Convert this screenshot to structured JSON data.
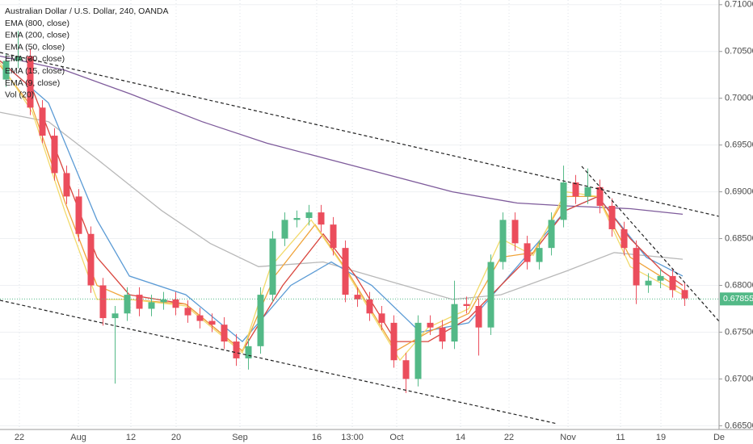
{
  "chart_data": {
    "type": "candlestick",
    "title": "Australian Dollar / U.S. Dollar, 240, OANDA",
    "ylim": [
      0.6646,
      0.7105
    ],
    "yticks": [
      {
        "value": 0.71,
        "label": "0.71000"
      },
      {
        "value": 0.705,
        "label": "0.70500"
      },
      {
        "value": 0.7,
        "label": "0.70000"
      },
      {
        "value": 0.695,
        "label": "0.69500"
      },
      {
        "value": 0.69,
        "label": "0.69000"
      },
      {
        "value": 0.685,
        "label": "0.68500"
      },
      {
        "value": 0.68,
        "label": "0.68000"
      },
      {
        "value": 0.675,
        "label": "0.67500"
      },
      {
        "value": 0.67,
        "label": "0.67000"
      },
      {
        "value": 0.665,
        "label": "0.66500"
      }
    ],
    "xlim": [
      0,
      59.33
    ],
    "xticks": [
      {
        "value": 1.6,
        "label": "22"
      },
      {
        "value": 6.47,
        "label": "Aug"
      },
      {
        "value": 10.8,
        "label": "12"
      },
      {
        "value": 14.53,
        "label": "20"
      },
      {
        "value": 19.8,
        "label": "Sep"
      },
      {
        "value": 26.13,
        "label": "16"
      },
      {
        "value": 29.07,
        "label": "13:00"
      },
      {
        "value": 32.73,
        "label": "Oct"
      },
      {
        "value": 38,
        "label": "14"
      },
      {
        "value": 42,
        "label": "22"
      },
      {
        "value": 46.87,
        "label": "Nov"
      },
      {
        "value": 51.2,
        "label": "11"
      },
      {
        "value": 54.53,
        "label": "19"
      },
      {
        "value": 59.33,
        "label": "De"
      }
    ],
    "grid": true,
    "up_color": "#53b987",
    "down_color": "#eb4d5c",
    "last_price": 0.67855,
    "candles": {
      "open": [
        0.702,
        0.704,
        0.7045,
        0.699,
        0.696,
        0.692,
        0.6895,
        0.6855,
        0.68,
        0.6765,
        0.677,
        0.679,
        0.6775,
        0.6782,
        0.6785,
        0.6776,
        0.6768,
        0.6762,
        0.6758,
        0.674,
        0.6722,
        0.6735,
        0.679,
        0.685,
        0.687,
        0.6872,
        0.6878,
        0.6865,
        0.684,
        0.679,
        0.6785,
        0.677,
        0.676,
        0.672,
        0.67,
        0.676,
        0.6755,
        0.674,
        0.678,
        0.6778,
        0.6755,
        0.6825,
        0.687,
        0.6845,
        0.6825,
        0.684,
        0.687,
        0.691,
        0.6895,
        0.6905,
        0.6885,
        0.686,
        0.684,
        0.68,
        0.6805,
        0.681,
        0.6795
      ],
      "high": [
        0.7048,
        0.7072,
        0.7053,
        0.6998,
        0.6968,
        0.6928,
        0.6903,
        0.6863,
        0.6808,
        0.6778,
        0.6798,
        0.6798,
        0.679,
        0.6793,
        0.6793,
        0.6784,
        0.6776,
        0.677,
        0.6766,
        0.6748,
        0.6743,
        0.6798,
        0.6858,
        0.6878,
        0.688,
        0.6886,
        0.6886,
        0.6873,
        0.6848,
        0.6798,
        0.6793,
        0.6778,
        0.6768,
        0.6728,
        0.6768,
        0.6768,
        0.6763,
        0.6805,
        0.6788,
        0.6786,
        0.6833,
        0.6878,
        0.6878,
        0.6853,
        0.6848,
        0.6878,
        0.6928,
        0.6918,
        0.6925,
        0.6913,
        0.6893,
        0.6868,
        0.6848,
        0.6813,
        0.6818,
        0.6818,
        0.6803
      ],
      "low": [
        0.7012,
        0.7032,
        0.6982,
        0.6952,
        0.6912,
        0.6887,
        0.6847,
        0.6792,
        0.6757,
        0.6695,
        0.6762,
        0.6767,
        0.6767,
        0.6774,
        0.6768,
        0.676,
        0.6754,
        0.675,
        0.6732,
        0.6714,
        0.671,
        0.6727,
        0.6782,
        0.6842,
        0.6862,
        0.6864,
        0.6857,
        0.6832,
        0.6782,
        0.6777,
        0.6762,
        0.6752,
        0.6712,
        0.6685,
        0.6692,
        0.6747,
        0.6732,
        0.6732,
        0.677,
        0.6725,
        0.6747,
        0.6817,
        0.6837,
        0.6817,
        0.6817,
        0.6832,
        0.6862,
        0.6887,
        0.6887,
        0.6877,
        0.6852,
        0.6832,
        0.678,
        0.6792,
        0.6797,
        0.6787,
        0.6778
      ],
      "close": [
        0.704,
        0.7045,
        0.699,
        0.696,
        0.692,
        0.6895,
        0.6855,
        0.68,
        0.6765,
        0.677,
        0.679,
        0.6775,
        0.6782,
        0.6785,
        0.6776,
        0.6768,
        0.6762,
        0.6758,
        0.674,
        0.6722,
        0.6735,
        0.679,
        0.685,
        0.687,
        0.6872,
        0.6878,
        0.6865,
        0.684,
        0.679,
        0.6785,
        0.677,
        0.676,
        0.672,
        0.67,
        0.676,
        0.6755,
        0.674,
        0.678,
        0.6778,
        0.6755,
        0.6825,
        0.687,
        0.6845,
        0.6825,
        0.684,
        0.687,
        0.691,
        0.6895,
        0.6905,
        0.6885,
        0.686,
        0.684,
        0.68,
        0.6805,
        0.681,
        0.6795,
        0.6786
      ]
    },
    "series": [
      {
        "name": "EMA (800, close)",
        "color": "#7e5b9b",
        "x": [
          0,
          5.33,
          10.67,
          16.67,
          22,
          30,
          37.33,
          42.67,
          46.67,
          52,
          56.33
        ],
        "values": [
          0.7045,
          0.703,
          0.7005,
          0.6975,
          0.6952,
          0.6925,
          0.69,
          0.6888,
          0.6885,
          0.6882,
          0.6876
        ]
      },
      {
        "name": "EMA (200, close)",
        "color": "#b8b8b8",
        "x": [
          0,
          4,
          8,
          13.33,
          17.33,
          21.33,
          26.67,
          32,
          37.33,
          41.33,
          46.67,
          50.67,
          56.33
        ],
        "values": [
          0.6985,
          0.6975,
          0.6935,
          0.688,
          0.6845,
          0.682,
          0.6825,
          0.6805,
          0.6785,
          0.679,
          0.6815,
          0.6835,
          0.6828
        ]
      },
      {
        "name": "EMA (50, close)",
        "color": "#5b9bd5",
        "x": [
          0,
          4,
          8,
          10.67,
          15.33,
          20,
          24,
          27.33,
          30.67,
          34.67,
          38.67,
          42.67,
          46.67,
          49.33,
          53.33,
          56.33
        ],
        "values": [
          0.704,
          0.6995,
          0.687,
          0.681,
          0.679,
          0.674,
          0.68,
          0.6825,
          0.68,
          0.675,
          0.676,
          0.682,
          0.688,
          0.6895,
          0.683,
          0.681
        ]
      },
      {
        "name": "EMA (30, close)",
        "color": "#d9463e",
        "x": [
          0,
          2.67,
          5.33,
          8,
          10.67,
          15.33,
          20,
          23.33,
          26.67,
          29.33,
          32.67,
          35.33,
          38.67,
          41.33,
          44,
          46.67,
          49.33,
          52,
          54.67,
          56.33
        ],
        "values": [
          0.704,
          0.701,
          0.692,
          0.683,
          0.679,
          0.678,
          0.673,
          0.68,
          0.6855,
          0.681,
          0.674,
          0.674,
          0.6765,
          0.68,
          0.6835,
          0.688,
          0.6895,
          0.685,
          0.6815,
          0.68
        ]
      },
      {
        "name": "EMA (15, close)",
        "color": "#f0a33a",
        "x": [
          0,
          2.67,
          5.33,
          8,
          10.67,
          15.33,
          20,
          22.67,
          26,
          28.67,
          32.67,
          35.33,
          38.67,
          41.33,
          44,
          46.67,
          49.33,
          52,
          56.33
        ],
        "values": [
          0.7035,
          0.699,
          0.689,
          0.68,
          0.6785,
          0.678,
          0.673,
          0.681,
          0.6865,
          0.6815,
          0.673,
          0.675,
          0.677,
          0.683,
          0.6835,
          0.6895,
          0.6895,
          0.683,
          0.6795
        ]
      },
      {
        "name": "EMA (9, close)",
        "color": "#f2da6b",
        "x": [
          0,
          2.67,
          5.33,
          8,
          10.67,
          15.33,
          20,
          22.33,
          25.67,
          28.33,
          33,
          35.33,
          38.67,
          41.33,
          44,
          46.67,
          49.33,
          52,
          56.33
        ],
        "values": [
          0.7038,
          0.6985,
          0.688,
          0.6785,
          0.6785,
          0.6778,
          0.6728,
          0.682,
          0.687,
          0.682,
          0.672,
          0.6755,
          0.6775,
          0.685,
          0.6832,
          0.69,
          0.6895,
          0.682,
          0.679
        ]
      },
      {
        "name": "Vol (20)",
        "color": "#9aa0a6"
      }
    ]
  }
}
